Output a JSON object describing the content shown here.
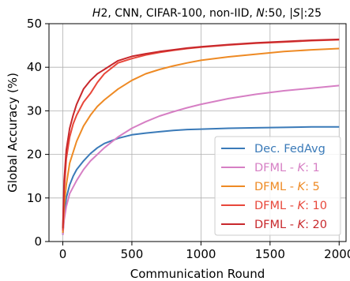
{
  "chart_data": {
    "type": "line",
    "title": "H2, CNN, CIFAR-100, non-IID, N:50, |S|:25",
    "xlabel": "Communication Round",
    "ylabel": "Global Accuracy (%)",
    "xlim": [
      -100,
      2050
    ],
    "ylim": [
      0,
      50
    ],
    "xticks": [
      0,
      500,
      1000,
      1500,
      2000
    ],
    "yticks": [
      0,
      10,
      20,
      30,
      40,
      50
    ],
    "grid": true,
    "legend_position": "lower-right",
    "series": [
      {
        "name": "Dec. FedAvg",
        "color": "#3a7ab8",
        "x": [
          0,
          10,
          25,
          50,
          75,
          100,
          150,
          200,
          250,
          300,
          400,
          500,
          600,
          700,
          800,
          900,
          1000,
          1200,
          1400,
          1600,
          1800,
          2000
        ],
        "y": [
          1.5,
          6,
          10,
          13,
          15,
          16.5,
          18.5,
          20.2,
          21.5,
          22.5,
          23.7,
          24.5,
          24.9,
          25.2,
          25.5,
          25.7,
          25.8,
          26.0,
          26.1,
          26.2,
          26.3,
          26.3
        ]
      },
      {
        "name": "DFML - K: 1",
        "color": "#d67fc4",
        "x": [
          0,
          10,
          25,
          50,
          100,
          150,
          200,
          300,
          400,
          500,
          600,
          700,
          800,
          900,
          1000,
          1200,
          1400,
          1600,
          1800,
          2000
        ],
        "y": [
          1.5,
          5,
          8,
          11,
          14,
          16.5,
          18.5,
          21.5,
          24,
          26,
          27.5,
          28.8,
          29.8,
          30.7,
          31.5,
          32.8,
          33.8,
          34.6,
          35.2,
          35.8
        ]
      },
      {
        "name": "DFML - K: 5",
        "color": "#ee8a24",
        "x": [
          0,
          10,
          25,
          50,
          100,
          150,
          200,
          250,
          300,
          400,
          500,
          600,
          700,
          800,
          900,
          1000,
          1200,
          1400,
          1600,
          1800,
          2000
        ],
        "y": [
          2,
          8,
          13,
          18,
          23,
          26.5,
          29,
          31,
          32.5,
          35,
          37,
          38.5,
          39.5,
          40.3,
          41,
          41.6,
          42.4,
          43.0,
          43.6,
          44.0,
          44.3
        ]
      },
      {
        "name": "DFML - K: 10",
        "color": "#e8473a",
        "x": [
          0,
          10,
          25,
          50,
          75,
          100,
          150,
          200,
          250,
          300,
          400,
          500,
          600,
          700,
          800,
          900,
          1000,
          1200,
          1400,
          1600,
          1800,
          2000
        ],
        "y": [
          2.5,
          12,
          19,
          24,
          27,
          29,
          32,
          34,
          36.5,
          38.5,
          41,
          42,
          42.8,
          43.4,
          43.9,
          44.3,
          44.6,
          45.1,
          45.5,
          45.8,
          46.1,
          46.3
        ]
      },
      {
        "name": "DFML - K: 20",
        "color": "#c8282c",
        "x": [
          0,
          10,
          25,
          50,
          75,
          100,
          150,
          200,
          250,
          300,
          400,
          500,
          600,
          700,
          800,
          900,
          1000,
          1200,
          1400,
          1600,
          1800,
          2000
        ],
        "y": [
          3,
          14,
          21,
          26,
          29,
          31.5,
          35,
          37,
          38.5,
          39.5,
          41.5,
          42.5,
          43.1,
          43.6,
          44,
          44.4,
          44.7,
          45.2,
          45.6,
          45.9,
          46.2,
          46.4
        ]
      }
    ]
  }
}
